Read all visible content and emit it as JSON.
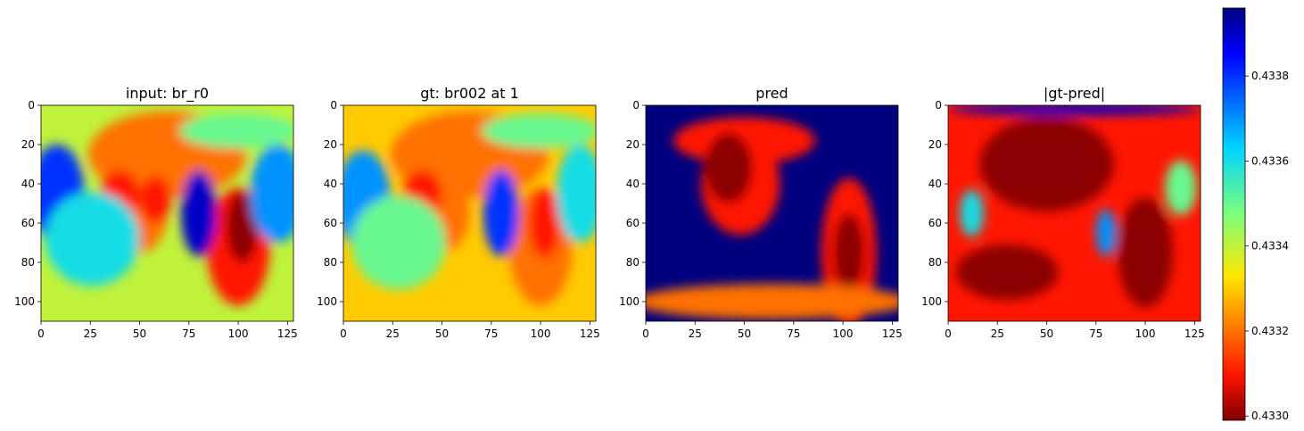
{
  "chart_data": {
    "type": "heatmap",
    "colormap": "jet-reversed",
    "panels": [
      {
        "title": "input: br_r0",
        "xlim": [
          0,
          128
        ],
        "ylim": [
          110,
          0
        ],
        "xticks": [
          0,
          25,
          50,
          75,
          100,
          125
        ],
        "yticks": [
          0,
          20,
          40,
          60,
          80,
          100
        ],
        "description_fields": {
          "base_level": 0.4334,
          "blobs": [
            {
              "x": 64,
              "y": 25,
              "rx": 40,
              "ry": 22,
              "value": 0.4332
            },
            {
              "x": 50,
              "y": 55,
              "rx": 14,
              "ry": 20,
              "value": 0.4332
            },
            {
              "x": 40,
              "y": 45,
              "rx": 10,
              "ry": 12,
              "value": 0.4331
            },
            {
              "x": 58,
              "y": 48,
              "rx": 8,
              "ry": 12,
              "value": 0.4331
            },
            {
              "x": 100,
              "y": 72,
              "rx": 16,
              "ry": 30,
              "value": 0.4331
            },
            {
              "x": 102,
              "y": 62,
              "rx": 8,
              "ry": 18,
              "value": 0.433
            },
            {
              "x": 8,
              "y": 45,
              "rx": 14,
              "ry": 25,
              "value": 0.4338
            },
            {
              "x": 26,
              "y": 68,
              "rx": 24,
              "ry": 24,
              "value": 0.4336
            },
            {
              "x": 80,
              "y": 55,
              "rx": 9,
              "ry": 22,
              "value": 0.4339
            },
            {
              "x": 120,
              "y": 45,
              "rx": 14,
              "ry": 25,
              "value": 0.4337
            },
            {
              "x": 100,
              "y": 13,
              "rx": 30,
              "ry": 9,
              "value": 0.4335
            }
          ]
        }
      },
      {
        "title": "gt: br002 at 1",
        "xlim": [
          0,
          128
        ],
        "ylim": [
          110,
          0
        ],
        "xticks": [
          0,
          25,
          50,
          75,
          100,
          125
        ],
        "yticks": [
          0,
          20,
          40,
          60,
          80,
          100
        ],
        "description_fields": {
          "base_level": 0.4333,
          "blobs": [
            {
              "x": 64,
              "y": 25,
              "rx": 40,
              "ry": 22,
              "value": 0.4332
            },
            {
              "x": 50,
              "y": 55,
              "rx": 14,
              "ry": 20,
              "value": 0.4332
            },
            {
              "x": 40,
              "y": 45,
              "rx": 10,
              "ry": 12,
              "value": 0.4331
            },
            {
              "x": 100,
              "y": 72,
              "rx": 16,
              "ry": 30,
              "value": 0.4332
            },
            {
              "x": 102,
              "y": 60,
              "rx": 8,
              "ry": 18,
              "value": 0.4331
            },
            {
              "x": 10,
              "y": 48,
              "rx": 14,
              "ry": 25,
              "value": 0.4337
            },
            {
              "x": 28,
              "y": 70,
              "rx": 24,
              "ry": 24,
              "value": 0.4335
            },
            {
              "x": 80,
              "y": 55,
              "rx": 9,
              "ry": 22,
              "value": 0.4338
            },
            {
              "x": 120,
              "y": 45,
              "rx": 12,
              "ry": 25,
              "value": 0.4336
            },
            {
              "x": 100,
              "y": 13,
              "rx": 30,
              "ry": 9,
              "value": 0.4335
            }
          ]
        }
      },
      {
        "title": "pred",
        "xlim": [
          0,
          128
        ],
        "ylim": [
          110,
          0
        ],
        "xticks": [
          0,
          25,
          50,
          75,
          100,
          125
        ],
        "yticks": [
          0,
          20,
          40,
          60,
          80,
          100
        ],
        "description_fields": {
          "base_level": 0.434,
          "blobs": [
            {
              "x": 50,
              "y": 18,
              "rx": 36,
              "ry": 12,
              "value": 0.4331
            },
            {
              "x": 48,
              "y": 40,
              "rx": 20,
              "ry": 26,
              "value": 0.4331
            },
            {
              "x": 42,
              "y": 32,
              "rx": 12,
              "ry": 18,
              "value": 0.433
            },
            {
              "x": 103,
              "y": 75,
              "rx": 14,
              "ry": 38,
              "value": 0.4331
            },
            {
              "x": 103,
              "y": 75,
              "rx": 8,
              "ry": 20,
              "value": 0.433
            },
            {
              "x": 64,
              "y": 100,
              "rx": 70,
              "ry": 9,
              "value": 0.4332
            }
          ]
        }
      },
      {
        "title": "|gt-pred|",
        "xlim": [
          0,
          128
        ],
        "ylim": [
          110,
          0
        ],
        "xticks": [
          0,
          25,
          50,
          75,
          100,
          125
        ],
        "yticks": [
          0,
          20,
          40,
          60,
          80,
          100
        ],
        "description_fields": {
          "base_level": 0.4331,
          "blobs": [
            {
              "x": 50,
              "y": 30,
              "rx": 34,
              "ry": 24,
              "value": 0.433
            },
            {
              "x": 30,
              "y": 85,
              "rx": 26,
              "ry": 14,
              "value": 0.433
            },
            {
              "x": 100,
              "y": 75,
              "rx": 14,
              "ry": 28,
              "value": 0.433
            },
            {
              "x": 118,
              "y": 42,
              "rx": 8,
              "ry": 14,
              "value": 0.4335
            },
            {
              "x": 12,
              "y": 55,
              "rx": 6,
              "ry": 12,
              "value": 0.4336
            },
            {
              "x": 80,
              "y": 65,
              "rx": 5,
              "ry": 12,
              "value": 0.4337
            },
            {
              "x": 64,
              "y": 2,
              "rx": 64,
              "ry": 3,
              "value": 0.4339
            }
          ]
        }
      }
    ],
    "colorbar": {
      "ticks": [
        "0.4338",
        "0.4336",
        "0.4334",
        "0.4332",
        "0.4330"
      ],
      "tick_values": [
        0.4338,
        0.4336,
        0.4334,
        0.4332,
        0.433
      ],
      "vmin": 0.43299,
      "vmax": 0.43396
    }
  }
}
